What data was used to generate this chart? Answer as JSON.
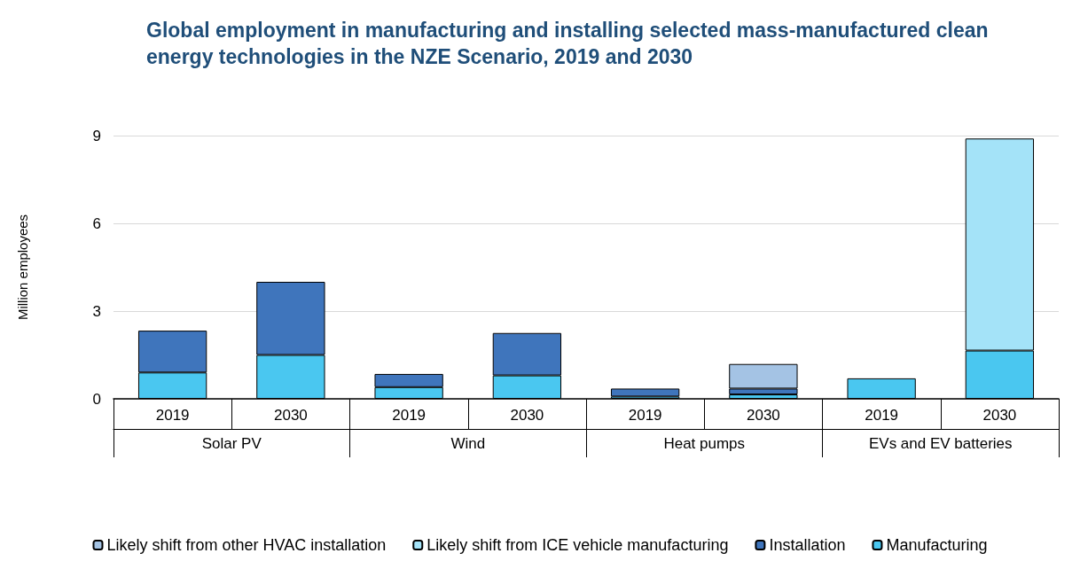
{
  "chart_data": {
    "type": "bar",
    "title": "Global employment in manufacturing and installing selected mass-manufactured clean energy technologies in the NZE Scenario, 2019 and 2030",
    "ylabel": "Million employees",
    "categories": [
      "2019",
      "2030",
      "2019",
      "2030",
      "2019",
      "2030",
      "2019",
      "2030"
    ],
    "annotations": [
      "Solar PV",
      "Wind",
      "Heat pumps",
      "EVs and EV batteries"
    ],
    "stacked": true,
    "series": [
      {
        "name": "Manufacturing",
        "color": "#4ac7f0",
        "values": [
          0.9,
          1.5,
          0.4,
          0.8,
          0.08,
          0.15,
          0.7,
          1.65
        ]
      },
      {
        "name": "Installation",
        "color": "#3f75bc",
        "values": [
          1.43,
          2.5,
          0.45,
          1.45,
          0.27,
          0.2,
          null,
          null
        ]
      },
      {
        "name": "Likely shift from ICE vehicle manufacturing",
        "color": "#a4e3f8",
        "values": [
          null,
          null,
          null,
          null,
          null,
          null,
          null,
          7.25
        ]
      },
      {
        "name": "Likely shift from other HVAC installation",
        "color": "#a4c3e4",
        "values": [
          null,
          null,
          null,
          null,
          null,
          0.84,
          null,
          null
        ]
      }
    ],
    "ylim": [
      0,
      9
    ],
    "yticks": [
      0,
      3,
      6,
      9
    ],
    "grid": "y",
    "legend": "bottom"
  }
}
